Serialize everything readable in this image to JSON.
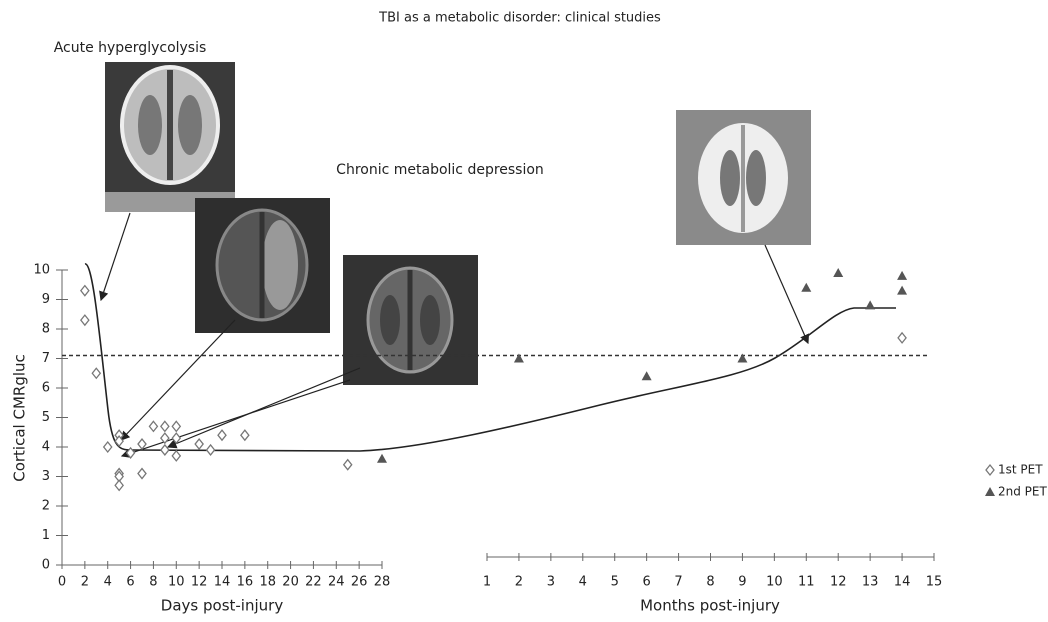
{
  "title": "TBI as a metabolic disorder: clinical studies",
  "annotations": [
    "Acute hyperglycolysis",
    "Chronic metabolic depression"
  ],
  "chart_data": [
    {
      "type": "scatter",
      "ylabel": "Cortical CMRgluc",
      "xlabel": "Days post-injury",
      "xlim": [
        0,
        28
      ],
      "xticks": [
        0,
        2,
        4,
        6,
        8,
        10,
        12,
        14,
        16,
        18,
        20,
        22,
        24,
        26,
        28
      ],
      "ylim": [
        0,
        10
      ],
      "yticks": [
        0,
        1,
        2,
        3,
        4,
        5,
        6,
        7,
        8,
        9,
        10
      ],
      "reference_line": 7.1,
      "series": [
        {
          "name": "1st PET",
          "marker": "diamond",
          "color": "#777777",
          "x": [
            2,
            2,
            3,
            4,
            5,
            5,
            5,
            5,
            5,
            6,
            7,
            7,
            8,
            9,
            9,
            9,
            10,
            10,
            10,
            12,
            13,
            14,
            16,
            25
          ],
          "y": [
            9.3,
            8.3,
            6.5,
            4.0,
            4.4,
            4.2,
            3.1,
            3.0,
            2.7,
            3.8,
            4.1,
            3.1,
            4.7,
            4.7,
            4.3,
            3.9,
            4.7,
            4.3,
            3.7,
            4.1,
            3.9,
            4.4,
            4.4,
            3.4
          ]
        },
        {
          "name": "2nd PET",
          "marker": "triangle",
          "color": "#555555",
          "x": [
            28
          ],
          "y": [
            3.6
          ]
        }
      ]
    },
    {
      "type": "scatter",
      "xlabel": "Months post-injury",
      "xlim": [
        1,
        15
      ],
      "xticks": [
        1,
        2,
        3,
        4,
        5,
        6,
        7,
        8,
        9,
        10,
        11,
        12,
        13,
        14,
        15
      ],
      "ylim": [
        0,
        10
      ],
      "series": [
        {
          "marker": "diamond",
          "color": "#777777",
          "x": [
            14
          ],
          "y": [
            7.7
          ]
        },
        {
          "marker": "triangle",
          "color": "#555555",
          "x": [
            2,
            6,
            9,
            11,
            12,
            13,
            14,
            14
          ],
          "y": [
            7.0,
            6.4,
            7.0,
            9.4,
            9.9,
            8.8,
            9.8,
            9.3
          ]
        }
      ]
    }
  ]
}
